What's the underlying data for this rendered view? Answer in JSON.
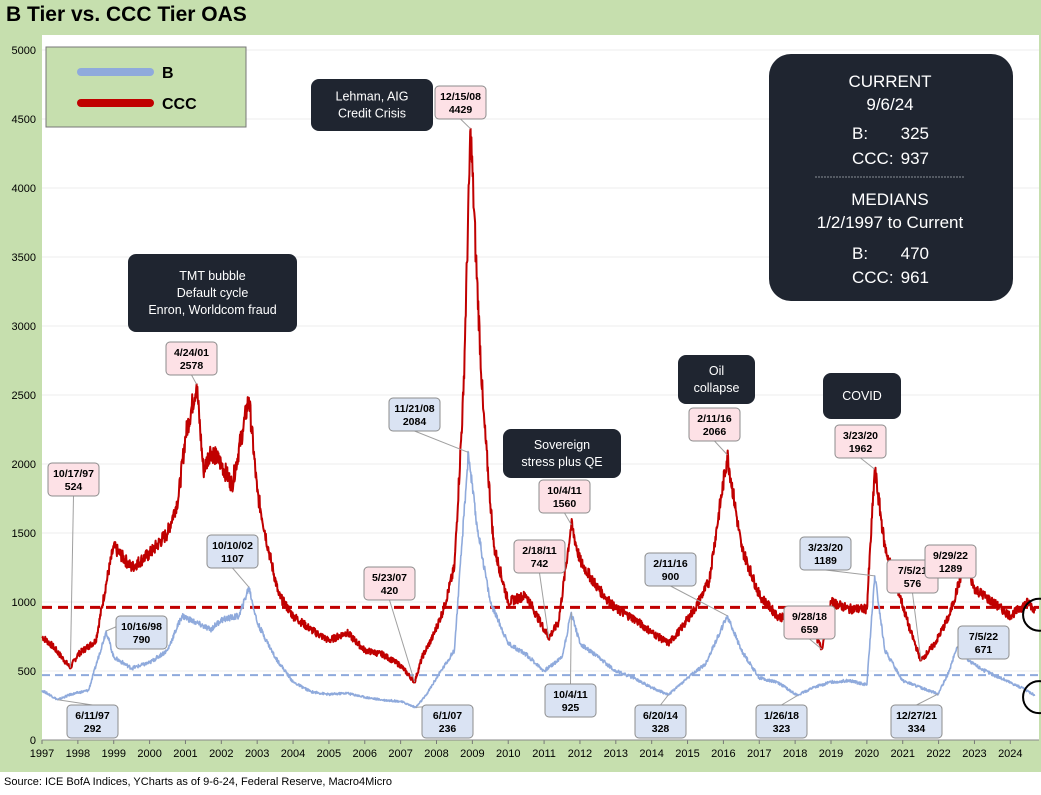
{
  "title": "B Tier vs. CCC Tier OAS",
  "source": "Source: ICE BofA Indices, YCharts as of 9-6-24, Federal Reserve, Macro4Micro",
  "colors": {
    "frame": "#c6dfae",
    "b": "#8faadc",
    "ccc": "#c00000",
    "dark_box": "#1f2530",
    "callout_red": "#fde1e6",
    "callout_blue": "#dae3f3"
  },
  "legend": [
    {
      "name": "B",
      "color": "#8faadc"
    },
    {
      "name": "CCC",
      "color": "#c00000"
    }
  ],
  "summary": {
    "current_title": "CURRENT",
    "current_date": "9/6/24",
    "current_b_label": "B:",
    "current_b_value": "325",
    "current_ccc_label": "CCC:",
    "current_ccc_value": "937",
    "medians_title": "MEDIANS",
    "medians_range": "1/2/1997 to Current",
    "median_b_label": "B:",
    "median_b_value": "470",
    "median_ccc_label": "CCC:",
    "median_ccc_value": "961"
  },
  "event_boxes": [
    {
      "lines": [
        "TMT bubble",
        "Default cycle",
        "Enron, Worldcom fraud"
      ]
    },
    {
      "lines": [
        "Lehman, AIG",
        "Credit Crisis"
      ]
    },
    {
      "lines": [
        "Sovereign",
        "stress plus QE"
      ]
    },
    {
      "lines": [
        "Oil",
        "collapse"
      ]
    },
    {
      "lines": [
        "COVID"
      ]
    }
  ],
  "callouts": [
    {
      "series": "CCC",
      "date": "10/17/97",
      "value": "524",
      "x": 1997.79,
      "y": 524
    },
    {
      "series": "B",
      "date": "6/11/97",
      "value": "292",
      "x": 1997.44,
      "y": 292
    },
    {
      "series": "B",
      "date": "10/16/98",
      "value": "790",
      "x": 1998.79,
      "y": 790
    },
    {
      "series": "CCC",
      "date": "4/24/01",
      "value": "2578",
      "x": 2001.31,
      "y": 2578
    },
    {
      "series": "B",
      "date": "10/10/02",
      "value": "1107",
      "x": 2002.77,
      "y": 1107
    },
    {
      "series": "CCC",
      "date": "5/23/07",
      "value": "420",
      "x": 2007.39,
      "y": 420
    },
    {
      "series": "B",
      "date": "6/1/07",
      "value": "236",
      "x": 2007.42,
      "y": 236
    },
    {
      "series": "CCC",
      "date": "12/15/08",
      "value": "4429",
      "x": 2008.95,
      "y": 4429
    },
    {
      "series": "B",
      "date": "11/21/08",
      "value": "2084",
      "x": 2008.89,
      "y": 2084
    },
    {
      "series": "CCC",
      "date": "2/18/11",
      "value": "742",
      "x": 2011.13,
      "y": 742
    },
    {
      "series": "CCC",
      "date": "10/4/11",
      "value": "1560",
      "x": 2011.76,
      "y": 1560
    },
    {
      "series": "B",
      "date": "10/4/11",
      "value": "925",
      "x": 2011.76,
      "y": 925
    },
    {
      "series": "CCC",
      "date": "2/11/16",
      "value": "2066",
      "x": 2016.11,
      "y": 2066
    },
    {
      "series": "B",
      "date": "2/11/16",
      "value": "900",
      "x": 2016.11,
      "y": 900
    },
    {
      "series": "B",
      "date": "6/20/14",
      "value": "328",
      "x": 2014.47,
      "y": 328
    },
    {
      "series": "B",
      "date": "1/26/18",
      "value": "323",
      "x": 2018.07,
      "y": 323
    },
    {
      "series": "CCC",
      "date": "9/28/18",
      "value": "659",
      "x": 2018.74,
      "y": 659
    },
    {
      "series": "CCC",
      "date": "3/23/20",
      "value": "1962",
      "x": 2020.22,
      "y": 1962
    },
    {
      "series": "B",
      "date": "3/23/20",
      "value": "1189",
      "x": 2020.22,
      "y": 1189
    },
    {
      "series": "CCC",
      "date": "7/5/21",
      "value": "576",
      "x": 2021.51,
      "y": 576
    },
    {
      "series": "B",
      "date": "12/27/21",
      "value": "334",
      "x": 2021.99,
      "y": 334
    },
    {
      "series": "CCC",
      "date": "9/29/22",
      "value": "1289",
      "x": 2022.74,
      "y": 1289
    },
    {
      "series": "B",
      "date": "7/5/22",
      "value": "671",
      "x": 2022.51,
      "y": 671
    }
  ],
  "chart_data": {
    "type": "line",
    "title": "B Tier vs. CCC Tier OAS",
    "xlim": [
      1997.0,
      2024.8
    ],
    "ylim": [
      0,
      5000
    ],
    "y_ticks": [
      0,
      500,
      1000,
      1500,
      2000,
      2500,
      3000,
      3500,
      4000,
      4500,
      5000
    ],
    "x_ticks": [
      "1997",
      "1998",
      "1999",
      "2000",
      "2001",
      "2002",
      "2003",
      "2004",
      "2005",
      "2006",
      "2007",
      "2008",
      "2009",
      "2010",
      "2011",
      "2012",
      "2013",
      "2014",
      "2015",
      "2016",
      "2017",
      "2018",
      "2019",
      "2020",
      "2021",
      "2022",
      "2023",
      "2024"
    ],
    "medians": {
      "B": 470,
      "CCC": 961
    },
    "legend_position": "top-left",
    "series": [
      {
        "name": "CCC",
        "color": "#c00000",
        "points": [
          [
            1997.0,
            750
          ],
          [
            1997.3,
            680
          ],
          [
            1997.79,
            524
          ],
          [
            1998.0,
            620
          ],
          [
            1998.5,
            720
          ],
          [
            1998.8,
            1150
          ],
          [
            1999.0,
            1400
          ],
          [
            1999.5,
            1250
          ],
          [
            2000.0,
            1350
          ],
          [
            2000.5,
            1500
          ],
          [
            2000.8,
            1750
          ],
          [
            2001.0,
            2200
          ],
          [
            2001.31,
            2578
          ],
          [
            2001.5,
            1950
          ],
          [
            2001.7,
            2100
          ],
          [
            2002.0,
            2000
          ],
          [
            2002.3,
            1850
          ],
          [
            2002.6,
            2250
          ],
          [
            2002.77,
            2480
          ],
          [
            2003.0,
            1800
          ],
          [
            2003.3,
            1400
          ],
          [
            2003.6,
            1050
          ],
          [
            2004.0,
            900
          ],
          [
            2004.5,
            800
          ],
          [
            2005.0,
            720
          ],
          [
            2005.5,
            780
          ],
          [
            2006.0,
            650
          ],
          [
            2006.5,
            620
          ],
          [
            2007.0,
            540
          ],
          [
            2007.39,
            420
          ],
          [
            2007.6,
            600
          ],
          [
            2007.9,
            750
          ],
          [
            2008.2,
            950
          ],
          [
            2008.5,
            1250
          ],
          [
            2008.75,
            2500
          ],
          [
            2008.95,
            4429
          ],
          [
            2009.1,
            3500
          ],
          [
            2009.3,
            2400
          ],
          [
            2009.6,
            1400
          ],
          [
            2010.0,
            1000
          ],
          [
            2010.5,
            1050
          ],
          [
            2010.8,
            900
          ],
          [
            2011.13,
            742
          ],
          [
            2011.4,
            850
          ],
          [
            2011.76,
            1560
          ],
          [
            2012.0,
            1300
          ],
          [
            2012.5,
            1100
          ],
          [
            2013.0,
            950
          ],
          [
            2013.5,
            880
          ],
          [
            2014.0,
            780
          ],
          [
            2014.47,
            700
          ],
          [
            2014.8,
            800
          ],
          [
            2015.2,
            950
          ],
          [
            2015.6,
            1150
          ],
          [
            2016.11,
            2066
          ],
          [
            2016.5,
            1400
          ],
          [
            2017.0,
            1050
          ],
          [
            2017.5,
            900
          ],
          [
            2018.07,
            850
          ],
          [
            2018.5,
            800
          ],
          [
            2018.74,
            659
          ],
          [
            2019.0,
            1000
          ],
          [
            2019.5,
            950
          ],
          [
            2020.0,
            950
          ],
          [
            2020.22,
            1962
          ],
          [
            2020.5,
            1400
          ],
          [
            2020.8,
            1150
          ],
          [
            2021.2,
            800
          ],
          [
            2021.51,
            576
          ],
          [
            2021.9,
            700
          ],
          [
            2022.3,
            900
          ],
          [
            2022.74,
            1289
          ],
          [
            2023.0,
            1100
          ],
          [
            2023.5,
            1000
          ],
          [
            2024.0,
            900
          ],
          [
            2024.5,
            1000
          ],
          [
            2024.69,
            937
          ]
        ]
      },
      {
        "name": "B",
        "color": "#8faadc",
        "points": [
          [
            1997.0,
            360
          ],
          [
            1997.44,
            292
          ],
          [
            1997.8,
            330
          ],
          [
            1998.3,
            360
          ],
          [
            1998.79,
            790
          ],
          [
            1999.0,
            600
          ],
          [
            1999.5,
            520
          ],
          [
            2000.0,
            560
          ],
          [
            2000.5,
            650
          ],
          [
            2000.9,
            900
          ],
          [
            2001.3,
            850
          ],
          [
            2001.7,
            800
          ],
          [
            2002.0,
            870
          ],
          [
            2002.5,
            900
          ],
          [
            2002.77,
            1107
          ],
          [
            2003.0,
            850
          ],
          [
            2003.5,
            600
          ],
          [
            2004.0,
            420
          ],
          [
            2004.5,
            350
          ],
          [
            2005.0,
            330
          ],
          [
            2005.5,
            340
          ],
          [
            2006.0,
            310
          ],
          [
            2006.5,
            290
          ],
          [
            2007.0,
            280
          ],
          [
            2007.42,
            236
          ],
          [
            2007.7,
            320
          ],
          [
            2008.0,
            450
          ],
          [
            2008.5,
            650
          ],
          [
            2008.89,
            2084
          ],
          [
            2009.1,
            1600
          ],
          [
            2009.5,
            1000
          ],
          [
            2010.0,
            700
          ],
          [
            2010.5,
            620
          ],
          [
            2011.0,
            500
          ],
          [
            2011.5,
            600
          ],
          [
            2011.76,
            925
          ],
          [
            2012.0,
            700
          ],
          [
            2012.5,
            600
          ],
          [
            2013.0,
            500
          ],
          [
            2013.5,
            450
          ],
          [
            2014.0,
            380
          ],
          [
            2014.47,
            328
          ],
          [
            2015.0,
            450
          ],
          [
            2015.5,
            550
          ],
          [
            2016.11,
            900
          ],
          [
            2016.5,
            650
          ],
          [
            2017.0,
            450
          ],
          [
            2017.5,
            420
          ],
          [
            2018.07,
            323
          ],
          [
            2018.5,
            380
          ],
          [
            2019.0,
            420
          ],
          [
            2019.5,
            430
          ],
          [
            2020.0,
            400
          ],
          [
            2020.22,
            1189
          ],
          [
            2020.5,
            650
          ],
          [
            2021.0,
            430
          ],
          [
            2021.5,
            380
          ],
          [
            2021.99,
            334
          ],
          [
            2022.3,
            500
          ],
          [
            2022.51,
            671
          ],
          [
            2022.9,
            560
          ],
          [
            2023.3,
            500
          ],
          [
            2023.8,
            440
          ],
          [
            2024.3,
            380
          ],
          [
            2024.69,
            325
          ]
        ]
      }
    ]
  }
}
